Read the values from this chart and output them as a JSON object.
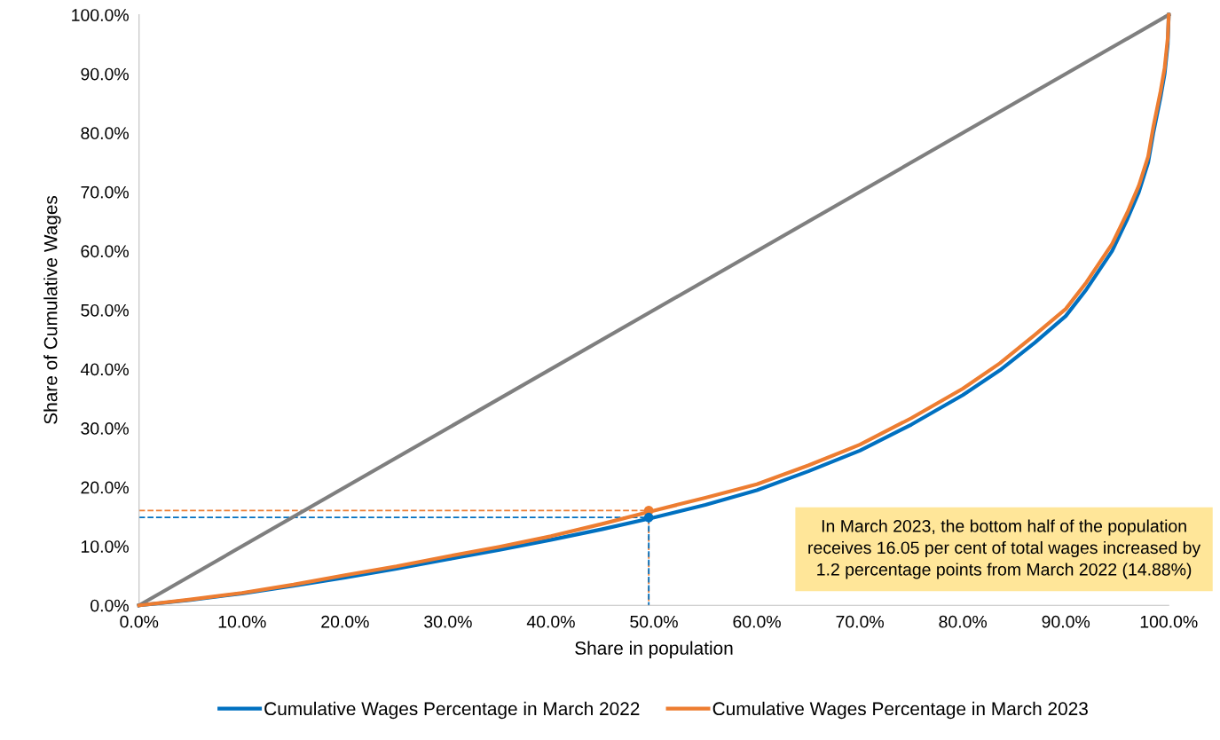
{
  "chart_data": {
    "type": "line",
    "xlabel": "Share in population",
    "ylabel": "Share of Cumulative Wages",
    "xlim": [
      0,
      100
    ],
    "ylim": [
      0,
      100
    ],
    "xticks": [
      {
        "value": 0,
        "label": "0.0%"
      },
      {
        "value": 10,
        "label": "10.0%"
      },
      {
        "value": 20,
        "label": "20.0%"
      },
      {
        "value": 30,
        "label": "30.0%"
      },
      {
        "value": 40,
        "label": "40.0%"
      },
      {
        "value": 50,
        "label": "50.0%"
      },
      {
        "value": 60,
        "label": "60.0%"
      },
      {
        "value": 70,
        "label": "70.0%"
      },
      {
        "value": 80,
        "label": "80.0%"
      },
      {
        "value": 90,
        "label": "90.0%"
      },
      {
        "value": 100,
        "label": "100.0%"
      }
    ],
    "yticks": [
      {
        "value": 0,
        "label": "0.0%"
      },
      {
        "value": 10,
        "label": "10.0%"
      },
      {
        "value": 20,
        "label": "20.0%"
      },
      {
        "value": 30,
        "label": "30.0%"
      },
      {
        "value": 40,
        "label": "40.0%"
      },
      {
        "value": 50,
        "label": "50.0%"
      },
      {
        "value": 60,
        "label": "60.0%"
      },
      {
        "value": 70,
        "label": "70.0%"
      },
      {
        "value": 80,
        "label": "80.0%"
      },
      {
        "value": 90,
        "label": "90.0%"
      },
      {
        "value": 100,
        "label": "100.0%"
      }
    ],
    "grid": false,
    "legend": "bottom",
    "marker": "none",
    "line_style": "solid",
    "series": [
      {
        "color": "#7f7f7f",
        "x": [
          0,
          100
        ],
        "values": [
          0,
          100
        ]
      },
      {
        "line_style": "dashed",
        "color": "#ed7d31",
        "x": [
          0,
          49.5,
          49.5
        ],
        "values": [
          16.05,
          16.05,
          0
        ]
      },
      {
        "line_style": "dashed",
        "color": "#0070c0",
        "x": [
          0,
          49.5,
          49.5
        ],
        "values": [
          14.88,
          14.88,
          0
        ]
      },
      {
        "name": "Cumulative Wages Percentage in March 2022",
        "color": "#0070c0",
        "x": [
          0,
          5,
          10,
          15,
          20,
          25,
          30,
          35,
          40,
          45,
          50,
          55,
          60,
          65,
          70,
          75,
          80,
          83.6,
          87,
          90,
          92,
          94.5,
          96,
          97.1,
          98,
          98.5,
          99.2,
          99.6,
          99.9,
          100
        ],
        "values": [
          0,
          0.9,
          2.0,
          3.3,
          4.7,
          6.2,
          7.8,
          9.4,
          11.1,
          12.9,
          14.88,
          17.0,
          19.5,
          22.7,
          26.2,
          30.6,
          35.6,
          39.8,
          44.5,
          49,
          53.5,
          60,
          65.5,
          70,
          75,
          80,
          86,
          90,
          95,
          100
        ]
      },
      {
        "name": "Cumulative Wages Percentage in March 2023",
        "color": "#ed7d31",
        "x": [
          0,
          5,
          10,
          15,
          20,
          25,
          30,
          35,
          40,
          45,
          50,
          55,
          60,
          65,
          70,
          75,
          80,
          83.6,
          87,
          90,
          92,
          94.5,
          96,
          97.1,
          98,
          98.5,
          99.2,
          99.6,
          99.9,
          100
        ],
        "values": [
          0,
          1.0,
          2.1,
          3.5,
          5.1,
          6.6,
          8.3,
          9.9,
          11.7,
          13.8,
          16.05,
          18.2,
          20.5,
          23.7,
          27.2,
          31.7,
          36.7,
          41.0,
          45.8,
          50.2,
          54.7,
          61.2,
          66.6,
          71.1,
          76,
          81,
          87,
          91,
          96,
          100
        ]
      },
      {
        "type": "scatter",
        "marker": "circle",
        "color": "#ed7d31",
        "x": [
          49.5
        ],
        "values": [
          16.05
        ]
      },
      {
        "type": "scatter",
        "marker": "circle",
        "color": "#0070c0",
        "x": [
          49.5
        ],
        "values": [
          14.88
        ]
      }
    ],
    "annotations": [
      "In March 2023, the bottom half of the population\nreceives 16.05 per cent of total wages increased by\n1.2 percentage points from March 2022 (14.88%)"
    ]
  }
}
